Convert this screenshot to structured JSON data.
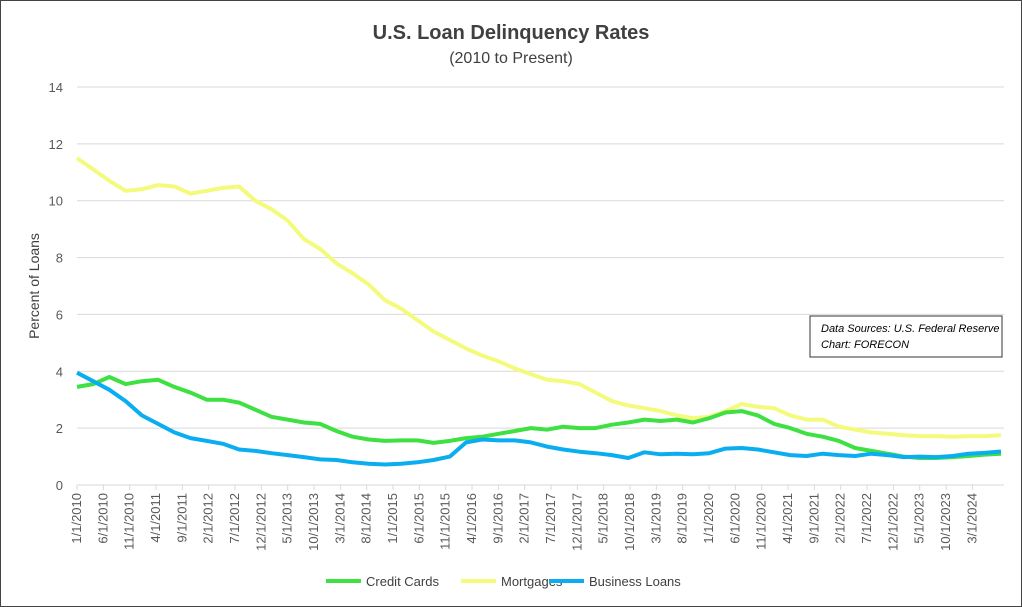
{
  "chart_data": {
    "type": "line",
    "title": "U.S. Loan Delinquency Rates",
    "subtitle": "(2010 to Present)",
    "xlabel": "",
    "ylabel": "Percent of Loans",
    "ylim": [
      0,
      14
    ],
    "yticks": [
      "0",
      "2",
      "4",
      "6",
      "8",
      "10",
      "12",
      "14"
    ],
    "grid": true,
    "legend_position": "bottom",
    "x_tick_labels": [
      "1/1/2010",
      "6/1/2010",
      "11/1/2010",
      "4/1/2011",
      "9/1/2011",
      "2/1/2012",
      "7/1/2012",
      "12/1/2012",
      "5/1/2013",
      "10/1/2013",
      "3/1/2014",
      "8/1/2014",
      "1/1/2015",
      "6/1/2015",
      "11/1/2015",
      "4/1/2016",
      "9/1/2016",
      "2/1/2017",
      "7/1/2017",
      "12/1/2017",
      "5/1/2018",
      "10/1/2018",
      "3/1/2019",
      "8/1/2019",
      "1/1/2020",
      "6/1/2020",
      "11/1/2020",
      "4/1/2021",
      "9/1/2021",
      "2/1/2022",
      "7/1/2022",
      "12/1/2022",
      "5/1/2023",
      "10/1/2023",
      "3/1/2024"
    ],
    "x_frequency": "quarterly from 2010 Q1",
    "series": [
      {
        "name": "Credit Cards",
        "color": "#3ee042",
        "values": [
          3.45,
          3.55,
          3.8,
          3.55,
          3.65,
          3.7,
          3.45,
          3.25,
          3.0,
          3.0,
          2.9,
          2.65,
          2.4,
          2.3,
          2.2,
          2.15,
          1.9,
          1.7,
          1.6,
          1.55,
          1.57,
          1.57,
          1.48,
          1.55,
          1.65,
          1.7,
          1.8,
          1.9,
          2.0,
          1.95,
          2.05,
          2.0,
          2.0,
          2.12,
          2.2,
          2.3,
          2.25,
          2.3,
          2.2,
          2.35,
          2.55,
          2.6,
          2.45,
          2.15,
          2.0,
          1.8,
          1.7,
          1.55,
          1.3,
          1.2,
          1.1,
          1.0,
          0.95,
          0.95,
          0.98,
          1.02,
          1.07,
          1.1
        ]
      },
      {
        "name": "Mortgages",
        "color": "#f4fa7c",
        "values": [
          11.5,
          11.1,
          10.7,
          10.35,
          10.4,
          10.55,
          10.5,
          10.25,
          10.35,
          10.45,
          10.5,
          10.0,
          9.7,
          9.3,
          8.65,
          8.3,
          7.8,
          7.45,
          7.05,
          6.5,
          6.2,
          5.8,
          5.4,
          5.1,
          4.8,
          4.55,
          4.35,
          4.1,
          3.9,
          3.7,
          3.65,
          3.55,
          3.25,
          2.95,
          2.8,
          2.7,
          2.6,
          2.45,
          2.35,
          2.4,
          2.6,
          2.85,
          2.75,
          2.7,
          2.45,
          2.3,
          2.3,
          2.05,
          1.95,
          1.85,
          1.8,
          1.75,
          1.72,
          1.72,
          1.7,
          1.72,
          1.72,
          1.75
        ]
      },
      {
        "name": "Business Loans",
        "color": "#0aaef0",
        "values": [
          3.95,
          3.65,
          3.35,
          2.95,
          2.45,
          2.15,
          1.85,
          1.65,
          1.55,
          1.45,
          1.25,
          1.2,
          1.12,
          1.05,
          0.98,
          0.9,
          0.88,
          0.8,
          0.75,
          0.72,
          0.75,
          0.8,
          0.88,
          1.0,
          1.5,
          1.6,
          1.57,
          1.57,
          1.5,
          1.35,
          1.25,
          1.17,
          1.12,
          1.05,
          0.95,
          1.15,
          1.08,
          1.1,
          1.08,
          1.12,
          1.28,
          1.3,
          1.25,
          1.15,
          1.05,
          1.02,
          1.1,
          1.05,
          1.02,
          1.1,
          1.05,
          0.98,
          1.0,
          0.98,
          1.02,
          1.1,
          1.13,
          1.18
        ]
      }
    ],
    "annotation": {
      "line1": "Data Sources: U.S. Federal Reserve",
      "line2": "Chart: FORECON"
    }
  }
}
